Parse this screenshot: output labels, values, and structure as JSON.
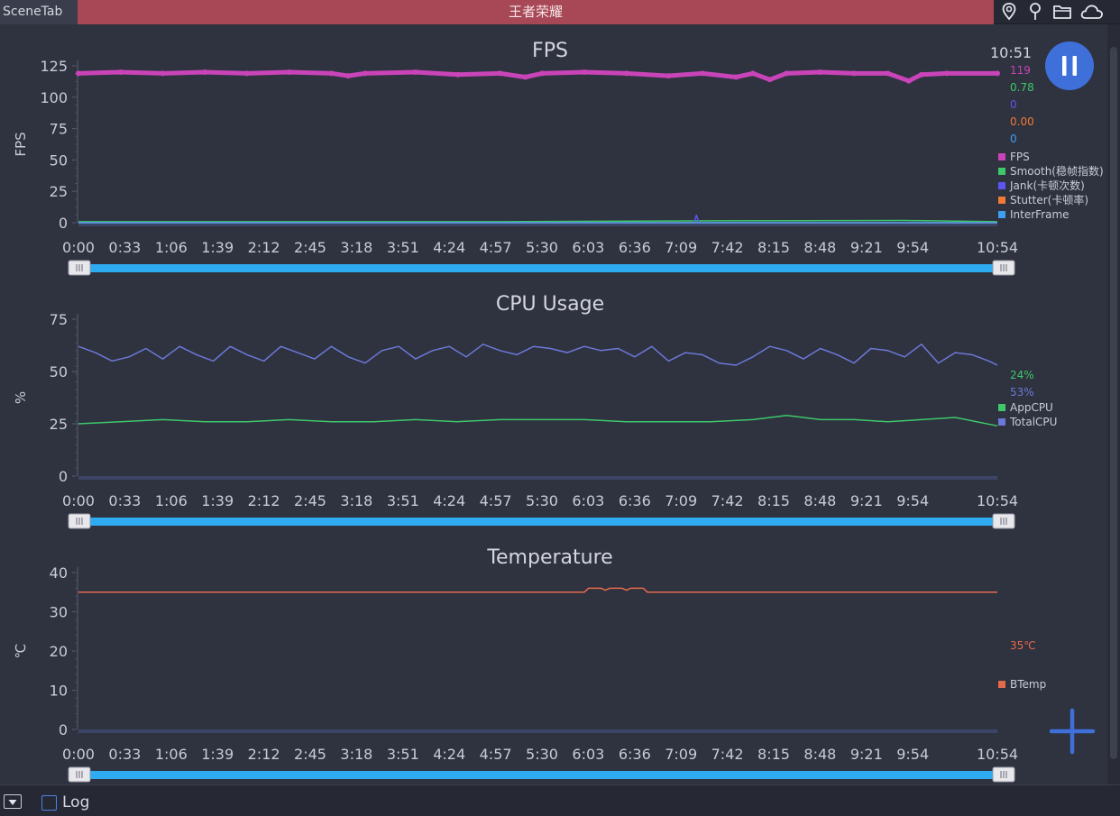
{
  "topbar": {
    "app_tab": "SceneTab",
    "game_title": "王者荣耀",
    "icons": [
      "location-pin-icon",
      "marker-icon",
      "folder-icon",
      "cloud-icon"
    ]
  },
  "overlay": {
    "clock": "10:51",
    "pause_icon": "pause-icon",
    "add_icon": "plus-icon"
  },
  "bottombar": {
    "collapse_icon": "dropdown-icon",
    "log_label": "Log",
    "log_checked": false
  },
  "colors": {
    "fps": "#c944b8",
    "smooth": "#3ec86a",
    "jank": "#5b56f0",
    "stutter": "#f07a36",
    "interframe": "#3e9ef0",
    "app_cpu": "#3ec86a",
    "total_cpu": "#6c79d8",
    "btemp": "#e56a4b",
    "slider": "#2eabf1",
    "pause_bg": "#3f6fd9"
  },
  "chart_data": [
    {
      "type": "line",
      "title": "FPS",
      "ylabel": "FPS",
      "ylim": [
        0,
        125
      ],
      "yticks": [
        "125",
        "100",
        "75",
        "50",
        "25",
        "0"
      ],
      "xlim": [
        "0:00",
        "10:54"
      ],
      "xticks": [
        "0:00",
        "0:33",
        "1:06",
        "1:39",
        "2:12",
        "2:45",
        "3:18",
        "3:51",
        "4:24",
        "4:57",
        "5:30",
        "6:03",
        "6:36",
        "7:09",
        "7:42",
        "8:15",
        "8:48",
        "9:21",
        "9:54",
        "10:54"
      ],
      "readouts": [
        {
          "value": "119",
          "color": "#c944b8"
        },
        {
          "value": "0.78",
          "color": "#3ec86a"
        },
        {
          "value": "0",
          "color": "#5b56f0"
        },
        {
          "value": "0.00",
          "color": "#f07a36"
        },
        {
          "value": "0",
          "color": "#3e9ef0"
        }
      ],
      "legend": [
        {
          "name": "FPS",
          "color": "#c944b8"
        },
        {
          "name": "Smooth(稳帧指数)",
          "color": "#3ec86a"
        },
        {
          "name": "Jank(卡顿次数)",
          "color": "#5b56f0"
        },
        {
          "name": "Stutter(卡顿率)",
          "color": "#f07a36"
        },
        {
          "name": "InterFrame",
          "color": "#3e9ef0"
        }
      ],
      "series": [
        {
          "name": "FPS",
          "base": 119,
          "values": [
            [
              0.0,
              119
            ],
            [
              0.5,
              120
            ],
            [
              1.0,
              119
            ],
            [
              1.5,
              120
            ],
            [
              2.0,
              119
            ],
            [
              2.5,
              120
            ],
            [
              3.0,
              119
            ],
            [
              3.2,
              117
            ],
            [
              3.4,
              119
            ],
            [
              4.0,
              120
            ],
            [
              4.5,
              118
            ],
            [
              5.0,
              119
            ],
            [
              5.3,
              116
            ],
            [
              5.5,
              119
            ],
            [
              6.0,
              120
            ],
            [
              6.5,
              119
            ],
            [
              7.0,
              117
            ],
            [
              7.4,
              119
            ],
            [
              7.8,
              116
            ],
            [
              8.0,
              119
            ],
            [
              8.2,
              114
            ],
            [
              8.4,
              119
            ],
            [
              8.8,
              120
            ],
            [
              9.2,
              119
            ],
            [
              9.6,
              119
            ],
            [
              9.85,
              113
            ],
            [
              10.0,
              118
            ],
            [
              10.3,
              119
            ],
            [
              10.9,
              119
            ]
          ]
        },
        {
          "name": "Smooth(稳帧指数)",
          "values": [
            [
              0.0,
              0.8
            ],
            [
              5.0,
              0.8
            ],
            [
              7.5,
              1.5
            ],
            [
              9.8,
              1.8
            ],
            [
              10.9,
              0.78
            ]
          ]
        },
        {
          "name": "Jank(卡顿次数)",
          "values": [
            [
              0.0,
              0
            ],
            [
              7.3,
              0
            ],
            [
              7.33,
              6
            ],
            [
              7.36,
              0
            ],
            [
              10.9,
              0
            ]
          ]
        },
        {
          "name": "Stutter(卡顿率)",
          "values": [
            [
              0.0,
              0
            ],
            [
              10.9,
              0
            ]
          ]
        },
        {
          "name": "InterFrame",
          "values": [
            [
              0.0,
              0
            ],
            [
              10.9,
              0
            ]
          ]
        }
      ]
    },
    {
      "type": "line",
      "title": "CPU Usage",
      "ylabel": "%",
      "ylim": [
        0,
        75
      ],
      "yticks": [
        "75",
        "50",
        "25",
        "0"
      ],
      "xlim": [
        "0:00",
        "10:54"
      ],
      "xticks": [
        "0:00",
        "0:33",
        "1:06",
        "1:39",
        "2:12",
        "2:45",
        "3:18",
        "3:51",
        "4:24",
        "4:57",
        "5:30",
        "6:03",
        "6:36",
        "7:09",
        "7:42",
        "8:15",
        "8:48",
        "9:21",
        "9:54",
        "10:54"
      ],
      "readouts": [
        {
          "value": "24%",
          "color": "#3ec86a"
        },
        {
          "value": "53%",
          "color": "#6c79d8"
        }
      ],
      "legend": [
        {
          "name": "AppCPU",
          "color": "#3ec86a"
        },
        {
          "name": "TotalCPU",
          "color": "#6c79d8"
        }
      ],
      "series": [
        {
          "name": "AppCPU",
          "values": [
            [
              0.0,
              25
            ],
            [
              0.5,
              26
            ],
            [
              1.0,
              27
            ],
            [
              1.5,
              26
            ],
            [
              2.0,
              26
            ],
            [
              2.5,
              27
            ],
            [
              3.0,
              26
            ],
            [
              3.5,
              26
            ],
            [
              4.0,
              27
            ],
            [
              4.5,
              26
            ],
            [
              5.0,
              27
            ],
            [
              5.5,
              27
            ],
            [
              6.0,
              27
            ],
            [
              6.5,
              26
            ],
            [
              7.0,
              26
            ],
            [
              7.5,
              26
            ],
            [
              8.0,
              27
            ],
            [
              8.4,
              29
            ],
            [
              8.8,
              27
            ],
            [
              9.2,
              27
            ],
            [
              9.6,
              26
            ],
            [
              10.0,
              27
            ],
            [
              10.4,
              28
            ],
            [
              10.9,
              24
            ]
          ]
        },
        {
          "name": "TotalCPU",
          "values": [
            [
              0.0,
              62
            ],
            [
              0.2,
              59
            ],
            [
              0.4,
              55
            ],
            [
              0.6,
              57
            ],
            [
              0.8,
              61
            ],
            [
              1.0,
              56
            ],
            [
              1.2,
              62
            ],
            [
              1.4,
              58
            ],
            [
              1.6,
              55
            ],
            [
              1.8,
              62
            ],
            [
              2.0,
              58
            ],
            [
              2.2,
              55
            ],
            [
              2.4,
              62
            ],
            [
              2.6,
              59
            ],
            [
              2.8,
              56
            ],
            [
              3.0,
              62
            ],
            [
              3.2,
              57
            ],
            [
              3.4,
              54
            ],
            [
              3.6,
              60
            ],
            [
              3.8,
              62
            ],
            [
              4.0,
              56
            ],
            [
              4.2,
              60
            ],
            [
              4.4,
              62
            ],
            [
              4.6,
              57
            ],
            [
              4.8,
              63
            ],
            [
              5.0,
              60
            ],
            [
              5.2,
              58
            ],
            [
              5.4,
              62
            ],
            [
              5.6,
              61
            ],
            [
              5.8,
              59
            ],
            [
              6.0,
              62
            ],
            [
              6.2,
              60
            ],
            [
              6.4,
              61
            ],
            [
              6.6,
              57
            ],
            [
              6.8,
              62
            ],
            [
              7.0,
              55
            ],
            [
              7.2,
              59
            ],
            [
              7.4,
              58
            ],
            [
              7.6,
              54
            ],
            [
              7.8,
              53
            ],
            [
              8.0,
              57
            ],
            [
              8.2,
              62
            ],
            [
              8.4,
              60
            ],
            [
              8.6,
              56
            ],
            [
              8.8,
              61
            ],
            [
              9.0,
              58
            ],
            [
              9.2,
              54
            ],
            [
              9.4,
              61
            ],
            [
              9.6,
              60
            ],
            [
              9.8,
              57
            ],
            [
              10.0,
              63
            ],
            [
              10.2,
              54
            ],
            [
              10.4,
              59
            ],
            [
              10.6,
              58
            ],
            [
              10.8,
              55
            ],
            [
              10.9,
              53
            ]
          ]
        }
      ]
    },
    {
      "type": "line",
      "title": "Temperature",
      "ylabel": "℃",
      "ylim": [
        0,
        40
      ],
      "yticks": [
        "40",
        "30",
        "20",
        "10",
        "0"
      ],
      "xlim": [
        "0:00",
        "10:54"
      ],
      "xticks": [
        "0:00",
        "0:33",
        "1:06",
        "1:39",
        "2:12",
        "2:45",
        "3:18",
        "3:51",
        "4:24",
        "4:57",
        "5:30",
        "6:03",
        "6:36",
        "7:09",
        "7:42",
        "8:15",
        "8:48",
        "9:21",
        "9:54",
        "10:54"
      ],
      "readouts": [
        {
          "value": "35℃",
          "color": "#e56a4b"
        }
      ],
      "legend": [
        {
          "name": "BTemp",
          "color": "#e56a4b"
        }
      ],
      "series": [
        {
          "name": "BTemp",
          "values": [
            [
              0.0,
              35
            ],
            [
              6.0,
              35
            ],
            [
              6.05,
              36
            ],
            [
              6.2,
              36
            ],
            [
              6.25,
              35.5
            ],
            [
              6.3,
              36
            ],
            [
              6.45,
              36
            ],
            [
              6.5,
              35.5
            ],
            [
              6.55,
              36
            ],
            [
              6.7,
              36
            ],
            [
              6.75,
              35
            ],
            [
              10.9,
              35
            ]
          ]
        }
      ]
    }
  ]
}
